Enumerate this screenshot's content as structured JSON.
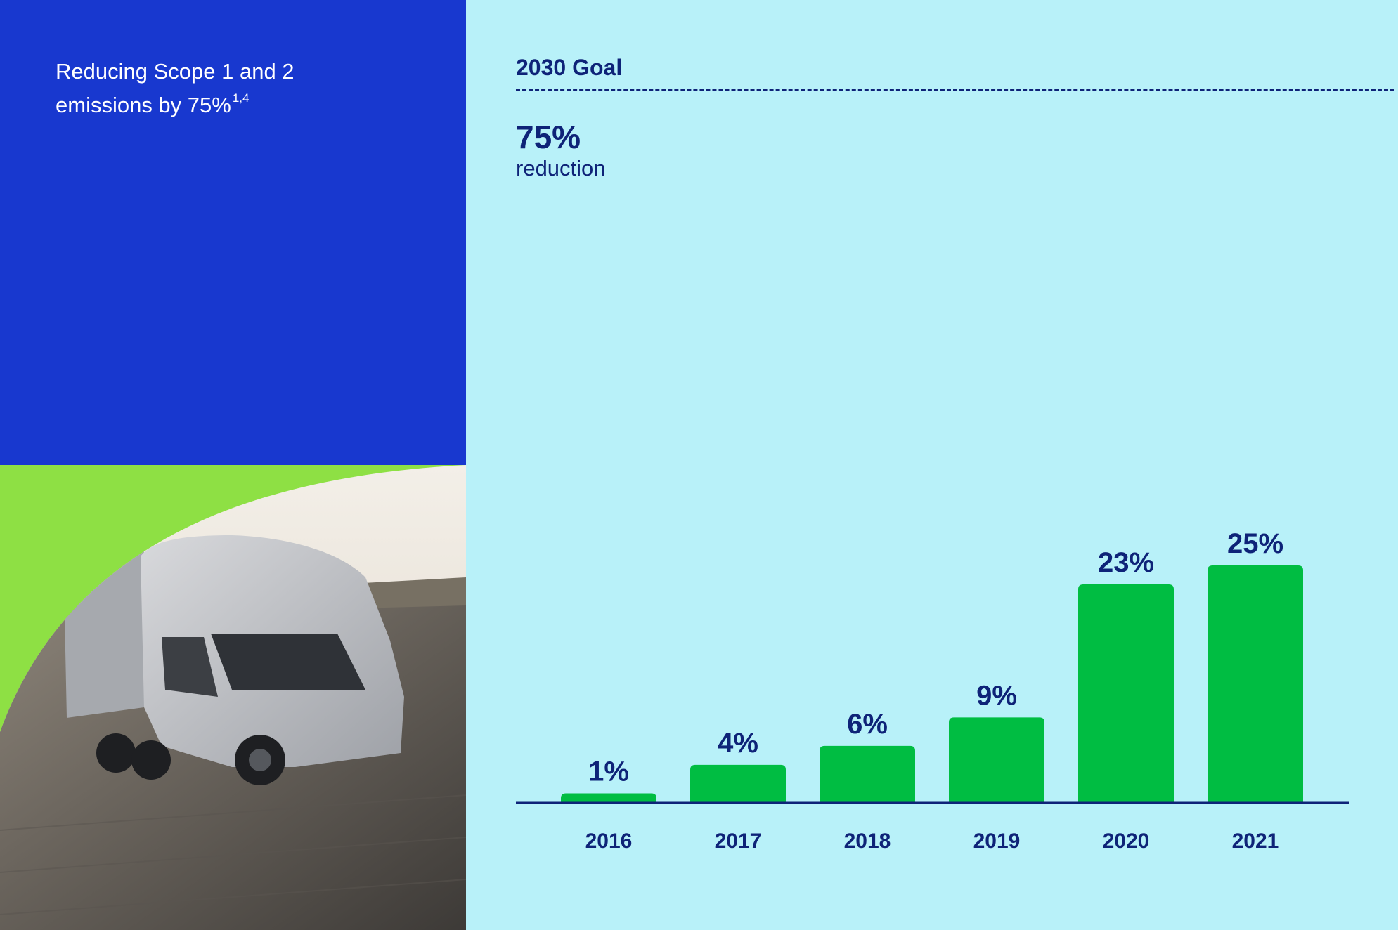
{
  "panel": {
    "title": "Reducing Scope 1 and 2 emissions by 75%",
    "title_footnote": "1,4"
  },
  "goal": {
    "label": "2030 Goal",
    "value": "75%",
    "value_caption": "reduction"
  },
  "colors": {
    "left_blue": "#1838cf",
    "right_bg": "#b8f1f9",
    "bar": "#00bd42",
    "text_navy": "#0e2378",
    "lime": "#8ee044"
  },
  "chart_data": {
    "type": "bar",
    "title": "",
    "xlabel": "",
    "ylabel": "",
    "categories": [
      "2016",
      "2017",
      "2018",
      "2019",
      "2020",
      "2021"
    ],
    "values": [
      1,
      4,
      6,
      9,
      23,
      25
    ],
    "value_labels": [
      "1%",
      "4%",
      "6%",
      "9%",
      "23%",
      "25%"
    ],
    "ylim": [
      0,
      75
    ],
    "goal_line": 75,
    "grid": false,
    "legend": "none"
  }
}
